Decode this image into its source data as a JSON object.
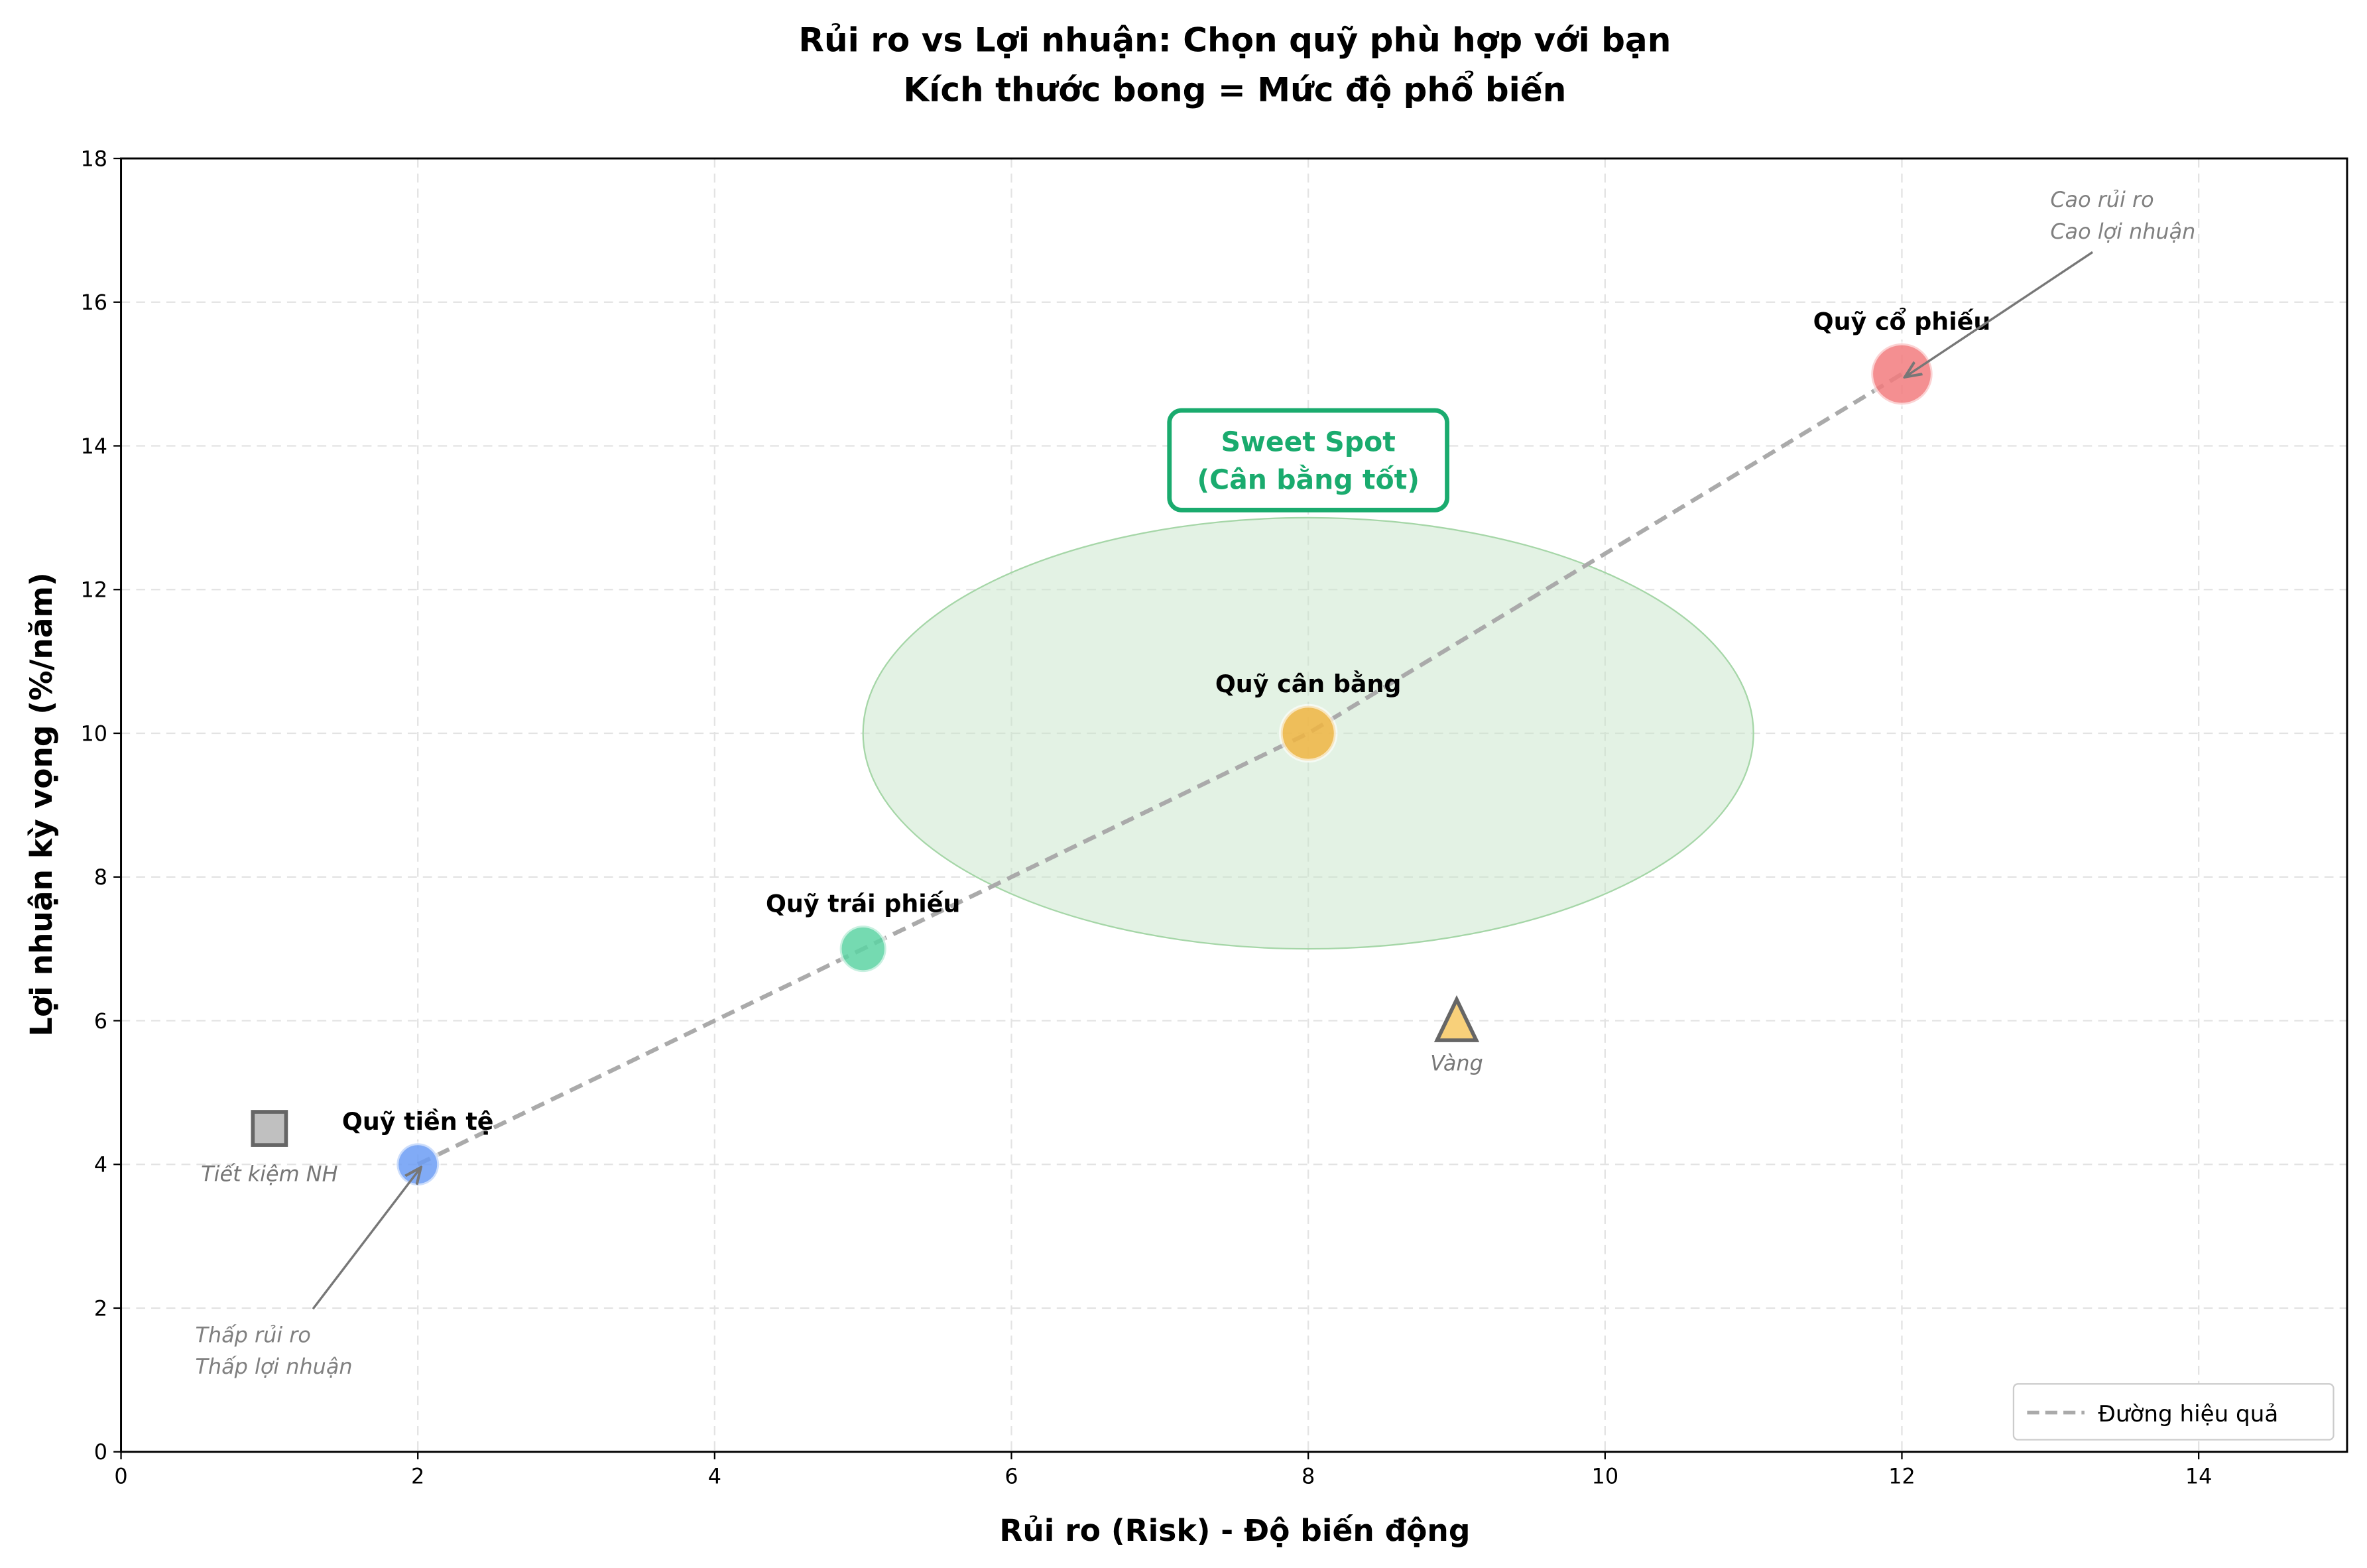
{
  "chart_data": {
    "type": "scatter",
    "title": "Rủi ro vs Lợi nhuận: Chọn quỹ phù hợp với bạn",
    "subtitle": "Kích thước bong = Mức độ phổ biến",
    "xlabel": "Rủi ro (Risk) - Độ biến động",
    "ylabel": "Lợi nhuận kỳ vọng (%/năm)",
    "xlim": [
      0,
      15
    ],
    "ylim": [
      0,
      18
    ],
    "xticks": [
      "0",
      "2",
      "4",
      "6",
      "8",
      "10",
      "12",
      "14"
    ],
    "yticks": [
      "0",
      "2",
      "4",
      "6",
      "8",
      "10",
      "12",
      "14",
      "16",
      "18"
    ],
    "grid": true,
    "funds": [
      {
        "label": "Quỹ tiền tệ",
        "x": 2,
        "y": 4,
        "color": "#6b9cf5",
        "size": 1
      },
      {
        "label": "Quỹ trái phiếu",
        "x": 5,
        "y": 7,
        "color": "#5dd3a3",
        "size": 1.1
      },
      {
        "label": "Quỹ cân bằng",
        "x": 8,
        "y": 10,
        "color": "#f0b542",
        "size": 1.3
      },
      {
        "label": "Quỹ cổ phiếu",
        "x": 12,
        "y": 15,
        "color": "#f27b7e",
        "size": 1.45
      }
    ],
    "others": [
      {
        "label": "Tiết kiệm NH",
        "x": 1,
        "y": 4.5,
        "marker": "square",
        "color": "#c0c0c0"
      },
      {
        "label": "Vàng",
        "x": 9,
        "y": 6,
        "marker": "triangle",
        "color": "#f8d07a"
      }
    ],
    "efficient_line": {
      "name": "Đường hiệu quả",
      "x": [
        2,
        5,
        8,
        12
      ],
      "y": [
        4,
        7,
        10,
        15
      ],
      "color": "#aaaaaa"
    },
    "sweet_spot": {
      "label_line1": "Sweet Spot",
      "label_line2": "(Cân bằng tốt)",
      "center": [
        8,
        10
      ],
      "width": 6,
      "height": 6,
      "label_at": [
        8,
        13.8
      ],
      "color": "#1aab6e",
      "fill": "#c8e6c9"
    },
    "annotations": [
      {
        "line1": "Cao rủi ro",
        "line2": "Cao lợi nhuận",
        "text_at": [
          13,
          17.2
        ],
        "arrow_to": [
          12,
          15
        ]
      },
      {
        "line1": "Thấp rủi ro",
        "line2": "Thấp lợi nhuận",
        "text_at": [
          0.5,
          1.4
        ],
        "arrow_to": [
          2,
          4
        ]
      }
    ],
    "legend": {
      "position": "bottom-right",
      "entries": [
        "Đường hiệu quả"
      ]
    }
  }
}
